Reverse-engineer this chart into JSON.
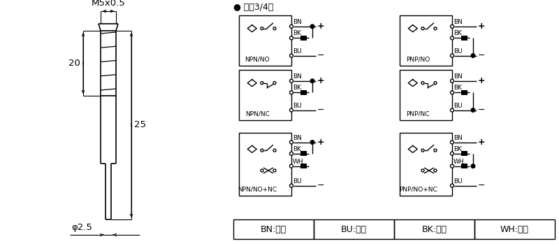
{
  "title": "M5x0.5",
  "dim_20": "20",
  "dim_25": "25",
  "dim_phi": "φ2.5",
  "header_text": "● 直涁3/4线",
  "color_table": [
    {
      "code": "BN",
      "name": "棕色"
    },
    {
      "code": "BU",
      "name": "兰色"
    },
    {
      "code": "BK",
      "name": "黑色"
    },
    {
      "code": "WH",
      "name": "白色"
    }
  ],
  "bg_color": "#ffffff",
  "line_color": "#000000"
}
